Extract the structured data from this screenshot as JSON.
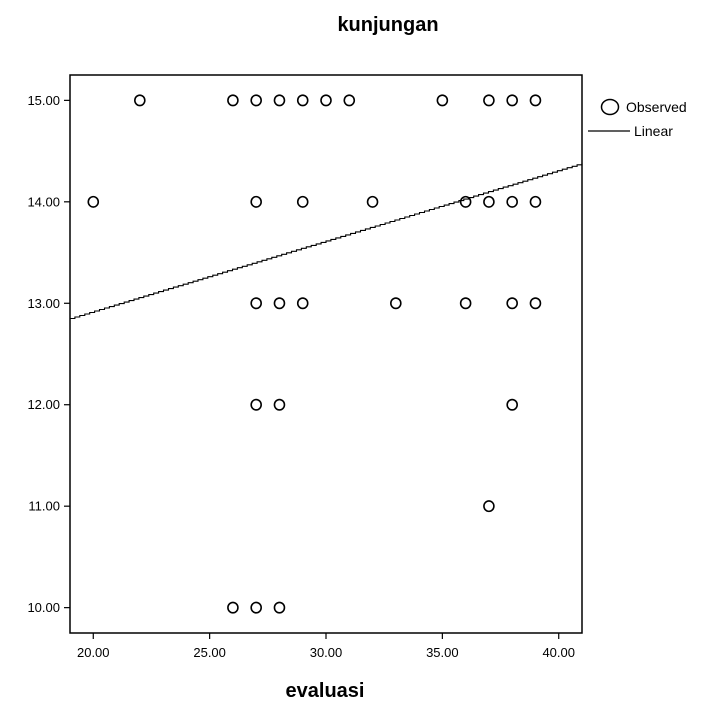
{
  "chart_data": {
    "type": "scatter",
    "title": "kunjungan",
    "xlabel": "evaluasi",
    "ylabel": "",
    "xlim": [
      19,
      41
    ],
    "ylim": [
      9.75,
      15.25
    ],
    "xticks": [
      "20.00",
      "25.00",
      "30.00",
      "35.00",
      "40.00"
    ],
    "yticks": [
      "10.00",
      "11.00",
      "12.00",
      "13.00",
      "14.00",
      "15.00"
    ],
    "grid": false,
    "legend_position": "top-right",
    "series": [
      {
        "name": "Observed",
        "kind": "markers",
        "points": [
          [
            22,
            15
          ],
          [
            26,
            15
          ],
          [
            27,
            15
          ],
          [
            28,
            15
          ],
          [
            29,
            15
          ],
          [
            30,
            15
          ],
          [
            31,
            15
          ],
          [
            35,
            15
          ],
          [
            37,
            15
          ],
          [
            38,
            15
          ],
          [
            39,
            15
          ],
          [
            20,
            14
          ],
          [
            27,
            14
          ],
          [
            29,
            14
          ],
          [
            32,
            14
          ],
          [
            36,
            14
          ],
          [
            37,
            14
          ],
          [
            38,
            14
          ],
          [
            39,
            14
          ],
          [
            27,
            13
          ],
          [
            28,
            13
          ],
          [
            29,
            13
          ],
          [
            33,
            13
          ],
          [
            36,
            13
          ],
          [
            38,
            13
          ],
          [
            39,
            13
          ],
          [
            27,
            12
          ],
          [
            28,
            12
          ],
          [
            38,
            12
          ],
          [
            37,
            11
          ],
          [
            26,
            10
          ],
          [
            27,
            10
          ],
          [
            28,
            10
          ]
        ]
      },
      {
        "name": "Linear",
        "kind": "line",
        "points": [
          [
            19,
            12.85
          ],
          [
            41,
            14.38
          ]
        ]
      }
    ]
  }
}
